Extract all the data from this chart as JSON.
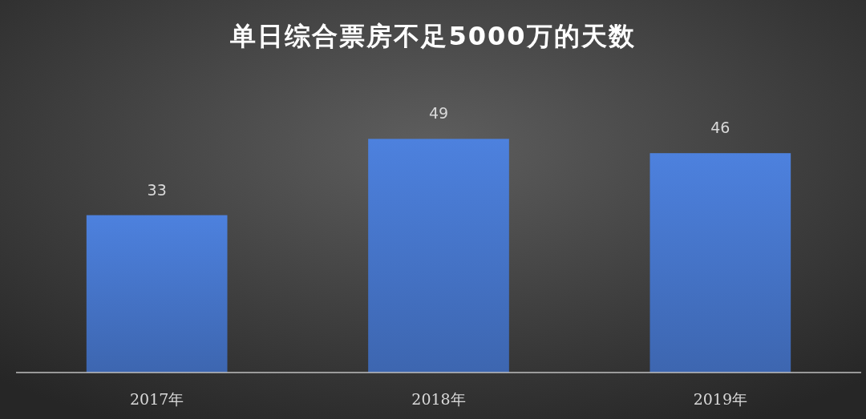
{
  "chart_data": {
    "type": "bar",
    "title": "单日综合票房不足5000万的天数",
    "categories": [
      "2017年",
      "2018年",
      "2019年"
    ],
    "values": [
      33,
      49,
      46
    ],
    "color": "#4472c4",
    "data_labels": true
  }
}
